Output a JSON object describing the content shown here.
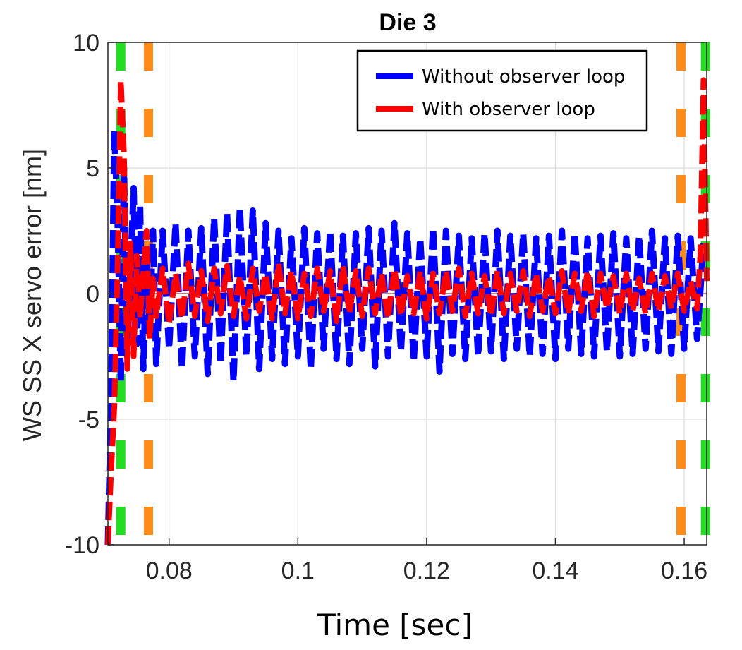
{
  "chart_data": {
    "type": "line",
    "title": "Die 3",
    "xlabel": "Time [sec]",
    "ylabel": "WS SS X  servo error [nm]",
    "xlim": [
      0.0705,
      0.1635
    ],
    "ylim": [
      -10,
      10
    ],
    "x_ticks": [
      0.08,
      0.1,
      0.12,
      0.14,
      0.16
    ],
    "x_tick_labels": [
      "0.08",
      "0.1",
      "0.12",
      "0.14",
      "0.16"
    ],
    "y_ticks": [
      -10,
      -5,
      0,
      5,
      10
    ],
    "y_tick_labels": [
      "-10",
      "-5",
      "0",
      "5",
      "10"
    ],
    "grid": true,
    "legend_position": "top-right",
    "series": [
      {
        "name": "Without observer loop",
        "color": "#0000ff",
        "style": "dashed",
        "x": [
          0.0705,
          0.071,
          0.0715,
          0.072,
          0.0725,
          0.073,
          0.0735,
          0.074,
          0.0745,
          0.075,
          0.0755,
          0.076,
          0.0765,
          0.077,
          0.0775,
          0.078,
          0.079,
          0.08,
          0.081,
          0.082,
          0.083,
          0.084,
          0.085,
          0.086,
          0.087,
          0.088,
          0.089,
          0.09,
          0.091,
          0.092,
          0.093,
          0.094,
          0.095,
          0.096,
          0.097,
          0.098,
          0.099,
          0.1,
          0.101,
          0.102,
          0.103,
          0.104,
          0.105,
          0.106,
          0.107,
          0.108,
          0.109,
          0.11,
          0.111,
          0.112,
          0.113,
          0.114,
          0.115,
          0.116,
          0.117,
          0.118,
          0.119,
          0.12,
          0.121,
          0.122,
          0.123,
          0.124,
          0.125,
          0.126,
          0.127,
          0.128,
          0.129,
          0.13,
          0.131,
          0.132,
          0.133,
          0.134,
          0.135,
          0.136,
          0.137,
          0.138,
          0.139,
          0.14,
          0.141,
          0.142,
          0.143,
          0.144,
          0.145,
          0.146,
          0.147,
          0.148,
          0.149,
          0.15,
          0.151,
          0.152,
          0.153,
          0.154,
          0.155,
          0.156,
          0.157,
          0.158,
          0.159,
          0.16,
          0.161,
          0.162,
          0.163
        ],
        "values": [
          -10.0,
          -4.0,
          6.5,
          3.0,
          -3.5,
          5.0,
          -2.5,
          1.0,
          4.2,
          -2.0,
          3.5,
          -3.0,
          1.5,
          -1.5,
          2.5,
          -2.8,
          2.5,
          -2.2,
          2.8,
          -3.0,
          2.5,
          -2.5,
          2.6,
          -3.2,
          3.0,
          -2.8,
          3.2,
          -3.5,
          3.4,
          -2.5,
          3.3,
          -3.0,
          2.8,
          -2.6,
          2.5,
          -2.8,
          2.2,
          -2.5,
          2.6,
          -3.0,
          2.4,
          -2.2,
          2.5,
          -2.6,
          2.3,
          -2.8,
          2.4,
          -2.2,
          2.6,
          -2.9,
          2.5,
          -2.5,
          2.8,
          -2.3,
          2.4,
          -2.7,
          2.2,
          -2.5,
          2.6,
          -3.1,
          2.5,
          -2.4,
          2.3,
          -2.6,
          2.2,
          -2.5,
          2.4,
          -2.3,
          2.5,
          -2.6,
          2.3,
          -2.2,
          2.4,
          -2.5,
          2.2,
          -2.4,
          2.3,
          -2.6,
          2.5,
          -2.2,
          2.4,
          -2.4,
          2.2,
          -2.5,
          2.3,
          -2.3,
          2.4,
          -2.5,
          2.2,
          -2.4,
          2.3,
          -2.2,
          2.5,
          -2.3,
          2.2,
          -2.4,
          2.3,
          -2.2,
          2.2,
          -1.8,
          2.0
        ]
      },
      {
        "name": "With observer loop",
        "color": "#ff0000",
        "style": "dashed",
        "x": [
          0.0705,
          0.071,
          0.0715,
          0.072,
          0.0725,
          0.073,
          0.0735,
          0.074,
          0.0745,
          0.075,
          0.0755,
          0.076,
          0.0765,
          0.077,
          0.0775,
          0.078,
          0.079,
          0.08,
          0.081,
          0.082,
          0.083,
          0.084,
          0.085,
          0.086,
          0.087,
          0.088,
          0.089,
          0.09,
          0.091,
          0.092,
          0.093,
          0.094,
          0.095,
          0.096,
          0.097,
          0.098,
          0.099,
          0.1,
          0.101,
          0.102,
          0.103,
          0.104,
          0.105,
          0.106,
          0.107,
          0.108,
          0.109,
          0.11,
          0.111,
          0.112,
          0.113,
          0.114,
          0.115,
          0.116,
          0.117,
          0.118,
          0.119,
          0.12,
          0.121,
          0.122,
          0.123,
          0.124,
          0.125,
          0.126,
          0.127,
          0.128,
          0.129,
          0.13,
          0.131,
          0.132,
          0.133,
          0.134,
          0.135,
          0.136,
          0.137,
          0.138,
          0.139,
          0.14,
          0.141,
          0.142,
          0.143,
          0.144,
          0.145,
          0.146,
          0.147,
          0.148,
          0.149,
          0.15,
          0.151,
          0.152,
          0.153,
          0.154,
          0.155,
          0.156,
          0.157,
          0.158,
          0.159,
          0.16,
          0.161,
          0.162,
          0.1625,
          0.163,
          0.1635
        ],
        "values": [
          -10.0,
          -7.0,
          -4.5,
          1.0,
          8.5,
          5.5,
          -3.0,
          2.0,
          -2.5,
          1.5,
          -1.0,
          0.8,
          2.5,
          -1.8,
          0.6,
          -0.9,
          1.0,
          -1.2,
          0.8,
          -1.0,
          1.2,
          -0.9,
          0.9,
          -1.1,
          1.0,
          -0.8,
          1.1,
          -0.9,
          0.7,
          -1.0,
          1.0,
          -0.7,
          0.8,
          -1.0,
          1.2,
          -0.8,
          0.9,
          -1.0,
          0.8,
          -0.9,
          1.0,
          -0.7,
          0.9,
          -1.1,
          1.1,
          -0.8,
          0.9,
          -0.9,
          1.0,
          -0.8,
          0.8,
          -1.0,
          1.0,
          -0.9,
          0.7,
          -0.8,
          0.9,
          -1.0,
          0.8,
          -0.8,
          0.9,
          -0.7,
          1.0,
          -0.9,
          0.8,
          -0.8,
          0.7,
          -0.9,
          0.9,
          -0.8,
          0.8,
          -0.7,
          0.9,
          -0.9,
          0.8,
          -0.7,
          0.7,
          -0.8,
          0.9,
          -0.8,
          0.8,
          -0.7,
          0.9,
          -0.9,
          0.8,
          -0.6,
          0.7,
          -0.8,
          0.8,
          -0.7,
          0.6,
          -0.8,
          0.8,
          -0.7,
          0.7,
          -0.6,
          0.8,
          -0.7,
          0.5,
          -0.6,
          1.5,
          8.5,
          0.5
        ]
      }
    ],
    "vertical_markers": [
      {
        "x": 0.0725,
        "color": "#22dd22",
        "style": "dashed"
      },
      {
        "x": 0.0768,
        "color": "#ff8c1a",
        "style": "dashed"
      },
      {
        "x": 0.1595,
        "color": "#ff8c1a",
        "style": "dashed"
      },
      {
        "x": 0.1633,
        "color": "#22dd22",
        "style": "dashed"
      }
    ],
    "zero_line_color": "#c08080"
  }
}
